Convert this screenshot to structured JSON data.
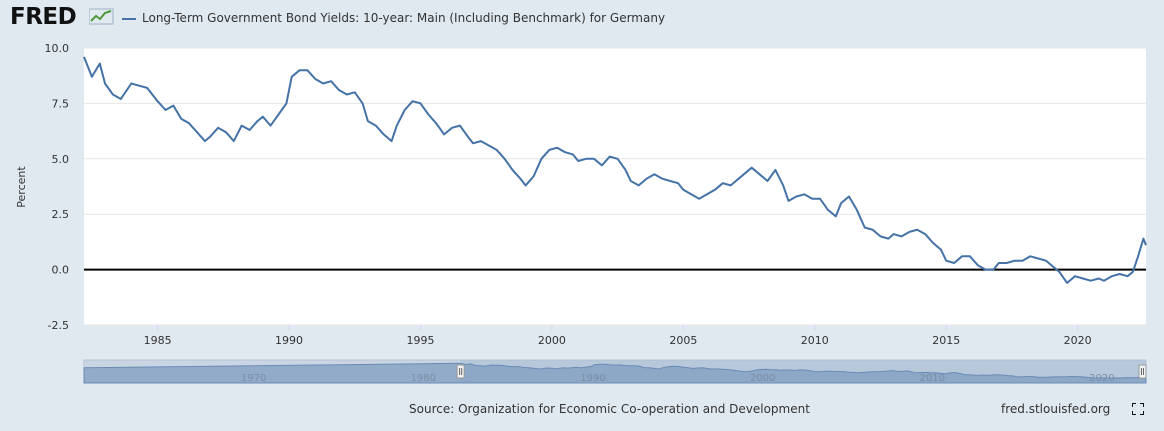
{
  "header": {
    "logo_text": "FRED",
    "legend_label": "Long-Term Government Bond Yields: 10-year: Main (Including Benchmark) for Germany",
    "series_color": "#4572a7"
  },
  "footer": {
    "source": "Source: Organization for Economic Co-operation and Development",
    "site": "fred.stlouisfed.org",
    "fullscreen_icon": "fullscreen-icon"
  },
  "navigator": {
    "labels": [
      "1970",
      "1980",
      "1990",
      "2000",
      "2010",
      "2020"
    ],
    "range": [
      1960,
      2022.6
    ],
    "selected": [
      1982.2,
      2022.6
    ]
  },
  "chart_data": {
    "type": "line",
    "title": "",
    "xlabel": "",
    "ylabel": "Percent",
    "xlim": [
      1982.2,
      2022.6
    ],
    "ylim": [
      -2.5,
      10.0
    ],
    "xticks": [
      "1985",
      "1990",
      "1995",
      "2000",
      "2005",
      "2010",
      "2015",
      "2020"
    ],
    "yticks": [
      "10.0",
      "7.5",
      "5.0",
      "2.5",
      "0.0",
      "-2.5"
    ],
    "grid": true,
    "legend_position": "top",
    "series": [
      {
        "name": "Long-Term Government Bond Yields: 10-year: Main (Including Benchmark) for Germany",
        "x": [
          1982.2,
          1982.5,
          1982.8,
          1983.0,
          1983.3,
          1983.6,
          1984.0,
          1984.3,
          1984.6,
          1985.0,
          1985.3,
          1985.6,
          1985.9,
          1986.2,
          1986.5,
          1986.8,
          1987.0,
          1987.3,
          1987.6,
          1987.9,
          1988.2,
          1988.5,
          1988.8,
          1989.0,
          1989.3,
          1989.6,
          1989.9,
          1990.1,
          1990.4,
          1990.7,
          1991.0,
          1991.3,
          1991.6,
          1991.9,
          1992.2,
          1992.5,
          1992.8,
          1993.0,
          1993.3,
          1993.6,
          1993.9,
          1994.1,
          1994.4,
          1994.7,
          1995.0,
          1995.3,
          1995.6,
          1995.9,
          1996.2,
          1996.5,
          1996.8,
          1997.0,
          1997.3,
          1997.6,
          1997.9,
          1998.2,
          1998.5,
          1998.8,
          1999.0,
          1999.3,
          1999.6,
          1999.9,
          2000.2,
          2000.5,
          2000.8,
          2001.0,
          2001.3,
          2001.6,
          2001.9,
          2002.2,
          2002.5,
          2002.8,
          2003.0,
          2003.3,
          2003.6,
          2003.9,
          2004.2,
          2004.5,
          2004.8,
          2005.0,
          2005.3,
          2005.6,
          2005.9,
          2006.2,
          2006.5,
          2006.8,
          2007.0,
          2007.3,
          2007.6,
          2007.9,
          2008.2,
          2008.5,
          2008.8,
          2009.0,
          2009.3,
          2009.6,
          2009.9,
          2010.2,
          2010.5,
          2010.8,
          2011.0,
          2011.3,
          2011.6,
          2011.9,
          2012.2,
          2012.5,
          2012.8,
          2013.0,
          2013.3,
          2013.6,
          2013.9,
          2014.2,
          2014.5,
          2014.8,
          2015.0,
          2015.3,
          2015.6,
          2015.9,
          2016.2,
          2016.5,
          2016.8,
          2017.0,
          2017.3,
          2017.6,
          2017.9,
          2018.2,
          2018.5,
          2018.8,
          2019.0,
          2019.3,
          2019.6,
          2019.9,
          2020.2,
          2020.5,
          2020.8,
          2021.0,
          2021.3,
          2021.6,
          2021.9,
          2022.1,
          2022.3,
          2022.5,
          2022.6
        ],
        "values": [
          9.6,
          8.7,
          9.3,
          8.4,
          7.9,
          7.7,
          8.4,
          8.3,
          8.2,
          7.6,
          7.2,
          7.4,
          6.8,
          6.6,
          6.2,
          5.8,
          6.0,
          6.4,
          6.2,
          5.8,
          6.5,
          6.3,
          6.7,
          6.9,
          6.5,
          7.0,
          7.5,
          8.7,
          9.0,
          9.0,
          8.6,
          8.4,
          8.5,
          8.1,
          7.9,
          8.0,
          7.5,
          6.7,
          6.5,
          6.1,
          5.8,
          6.5,
          7.2,
          7.6,
          7.5,
          7.0,
          6.6,
          6.1,
          6.4,
          6.5,
          6.0,
          5.7,
          5.8,
          5.6,
          5.4,
          5.0,
          4.5,
          4.1,
          3.8,
          4.2,
          5.0,
          5.4,
          5.5,
          5.3,
          5.2,
          4.9,
          5.0,
          5.0,
          4.7,
          5.1,
          5.0,
          4.5,
          4.0,
          3.8,
          4.1,
          4.3,
          4.1,
          4.0,
          3.9,
          3.6,
          3.4,
          3.2,
          3.4,
          3.6,
          3.9,
          3.8,
          4.0,
          4.3,
          4.6,
          4.3,
          4.0,
          4.5,
          3.8,
          3.1,
          3.3,
          3.4,
          3.2,
          3.2,
          2.7,
          2.4,
          3.0,
          3.3,
          2.7,
          1.9,
          1.8,
          1.5,
          1.4,
          1.6,
          1.5,
          1.7,
          1.8,
          1.6,
          1.2,
          0.9,
          0.4,
          0.3,
          0.6,
          0.6,
          0.2,
          0.0,
          0.0,
          0.3,
          0.3,
          0.4,
          0.4,
          0.6,
          0.5,
          0.4,
          0.2,
          -0.1,
          -0.6,
          -0.3,
          -0.4,
          -0.5,
          -0.4,
          -0.5,
          -0.3,
          -0.2,
          -0.3,
          -0.1,
          0.6,
          1.4,
          1.1
        ]
      }
    ]
  }
}
